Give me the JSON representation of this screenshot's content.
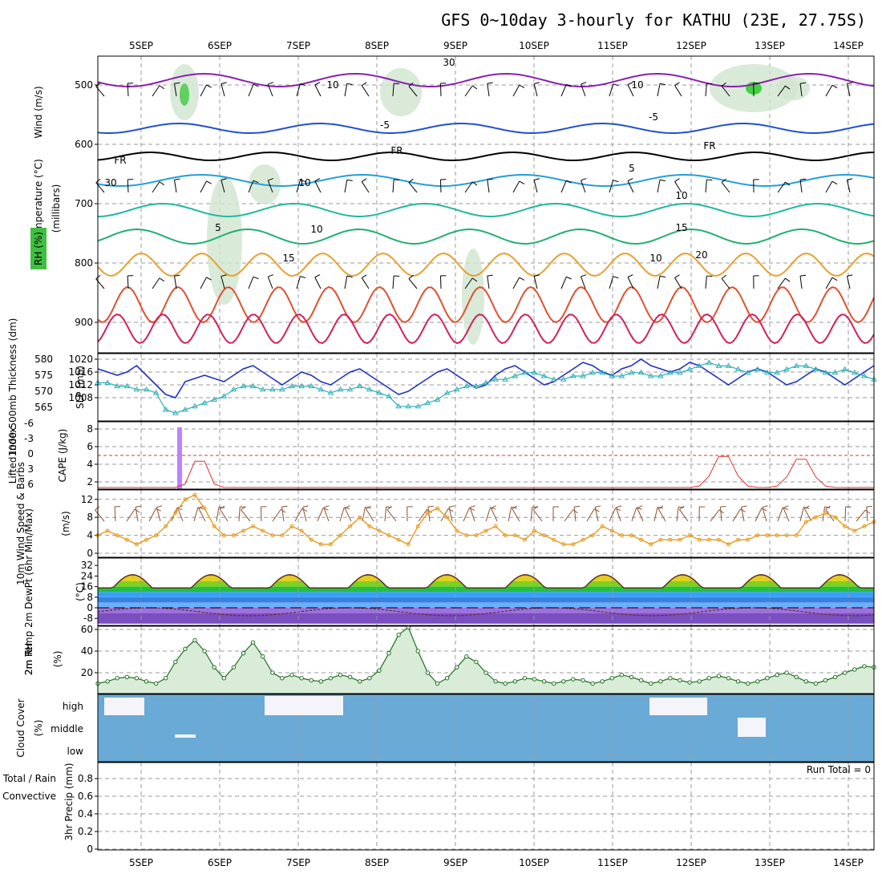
{
  "header": {
    "title": "GFS 0~10day 3-hourly for KATHU (23E, 27.75S)"
  },
  "time_axis": {
    "dates": [
      "5SEP",
      "6SEP",
      "7SEP",
      "8SEP",
      "9SEP",
      "10SEP",
      "11SEP",
      "12SEP",
      "13SEP",
      "14SEP"
    ]
  },
  "panels": {
    "upper": {
      "axis_label_wind": "Wind (m/s)",
      "axis_label_temp": "Temperature (°C)",
      "axis_label_rh": "RH (%)",
      "axis_label_pres": "(millibars)",
      "pressure_levels": [
        "500",
        "600",
        "700",
        "800",
        "900"
      ],
      "contour_labels": [
        "10",
        "10",
        "-5",
        "-5",
        "FR",
        "FR",
        "FR",
        "5",
        "5",
        "10",
        "10",
        "15",
        "15",
        "20",
        "30",
        "30",
        "10",
        "10"
      ]
    },
    "slp": {
      "label_thick": "1000-500mb Thickness (dm)",
      "label_slp": "SLP (mb)",
      "thick_ticks": [
        "580",
        "575",
        "570",
        "565"
      ],
      "slp_ticks": [
        "1020",
        "1016",
        "1012",
        "1008"
      ],
      "colors": {
        "slp": "#2030c0",
        "thickness": "#30b0b8"
      }
    },
    "li": {
      "label_li": "Lifted Index",
      "label_cape": "CAPE (J/kg)",
      "li_ticks": [
        "-6",
        "-3",
        "0",
        "3",
        "6"
      ],
      "cape_ticks": [
        "8",
        "6",
        "4",
        "2"
      ],
      "colors": {
        "li": "#e03030",
        "cape": "#c080ff"
      }
    },
    "wind10": {
      "label": "10m Wind Speed & Barbs",
      "unit": "(m/s)",
      "ticks": [
        "12",
        "8",
        "4",
        "0"
      ],
      "color": "#e89a20"
    },
    "temp2m": {
      "label": "2m Temp 2m DewPt (6hr Min/Max)",
      "unit": "(°C)",
      "ticks": [
        "32",
        "24",
        "16",
        "8",
        "0",
        "-8"
      ]
    },
    "rh2m": {
      "label": "2m RH",
      "unit": "(%)",
      "ticks": [
        "60",
        "40",
        "20"
      ]
    },
    "cloud": {
      "label": "Cloud Cover",
      "unit": "(%)",
      "levels": [
        "high",
        "middle",
        "low"
      ],
      "bg_color": "#6aaad6"
    },
    "precip": {
      "label_a": "Total / Rain",
      "label_b": "Convective",
      "axis_label": "3hr Precip (mm)",
      "ticks": [
        "0.8",
        "0.6",
        "0.4",
        "0.2",
        "0"
      ],
      "run_total": "Run Total = 0"
    }
  },
  "chart_data": {
    "type": "line",
    "time_steps": 81,
    "series": [
      {
        "name": "SLP (mb)",
        "values": [
          1017,
          1016,
          1015,
          1016,
          1018,
          1015,
          1012,
          1009,
          1008,
          1013,
          1014,
          1015,
          1014,
          1013,
          1015,
          1017,
          1018,
          1016,
          1014,
          1012,
          1014,
          1016,
          1015,
          1013,
          1012,
          1014,
          1016,
          1017,
          1015,
          1013,
          1011,
          1009,
          1010,
          1012,
          1014,
          1016,
          1017,
          1015,
          1013,
          1011,
          1012,
          1015,
          1017,
          1018,
          1016,
          1014,
          1012,
          1013,
          1015,
          1017,
          1019,
          1018,
          1016,
          1015,
          1017,
          1018,
          1020,
          1018,
          1017,
          1016,
          1017,
          1019,
          1018,
          1016,
          1014,
          1012,
          1014,
          1016,
          1017,
          1016,
          1014,
          1012,
          1013,
          1015,
          1017,
          1016,
          1014,
          1012,
          1014,
          1016,
          1018
        ]
      },
      {
        "name": "1000-500mb Thickness (dm)",
        "values": [
          573,
          573,
          572,
          572,
          571,
          571,
          570,
          565,
          564,
          565,
          566,
          567,
          568,
          569,
          571,
          572,
          572,
          571,
          571,
          571,
          572,
          572,
          572,
          571,
          570,
          571,
          571,
          572,
          571,
          570,
          569,
          566,
          566,
          566,
          567,
          568,
          570,
          571,
          572,
          572,
          573,
          574,
          574,
          575,
          576,
          576,
          575,
          574,
          574,
          575,
          575,
          576,
          576,
          575,
          575,
          576,
          576,
          575,
          575,
          576,
          576,
          577,
          578,
          579,
          578,
          578,
          577,
          576,
          577,
          576,
          576,
          577,
          578,
          578,
          577,
          576,
          576,
          577,
          576,
          575,
          574
        ]
      },
      {
        "name": "10m Wind Speed (m/s)",
        "values": [
          4,
          5,
          4,
          3,
          2,
          3,
          4,
          6,
          9,
          12,
          13,
          10,
          6,
          4,
          4,
          5,
          6,
          5,
          4,
          4,
          6,
          5,
          3,
          2,
          2,
          4,
          6,
          8,
          6,
          5,
          4,
          3,
          2,
          6,
          9,
          10,
          8,
          5,
          4,
          4,
          5,
          6,
          4,
          4,
          3,
          5,
          4,
          3,
          2,
          2,
          3,
          4,
          6,
          5,
          4,
          4,
          3,
          2,
          3,
          3,
          3,
          4,
          3,
          3,
          3,
          2,
          3,
          3,
          4,
          4,
          4,
          4,
          4,
          7,
          8,
          9,
          8,
          6,
          5,
          6,
          7
        ]
      },
      {
        "name": "2m RH (%)",
        "values": [
          10,
          12,
          15,
          16,
          15,
          12,
          10,
          15,
          30,
          42,
          50,
          40,
          25,
          15,
          25,
          38,
          48,
          35,
          20,
          15,
          18,
          15,
          13,
          12,
          15,
          18,
          16,
          12,
          15,
          22,
          38,
          55,
          62,
          40,
          20,
          10,
          15,
          25,
          35,
          30,
          20,
          12,
          10,
          12,
          15,
          14,
          12,
          10,
          12,
          14,
          13,
          10,
          12,
          15,
          18,
          16,
          13,
          10,
          12,
          15,
          13,
          11,
          12,
          15,
          17,
          15,
          12,
          10,
          12,
          15,
          18,
          20,
          16,
          12,
          10,
          13,
          16,
          20,
          23,
          26,
          25
        ]
      }
    ]
  }
}
